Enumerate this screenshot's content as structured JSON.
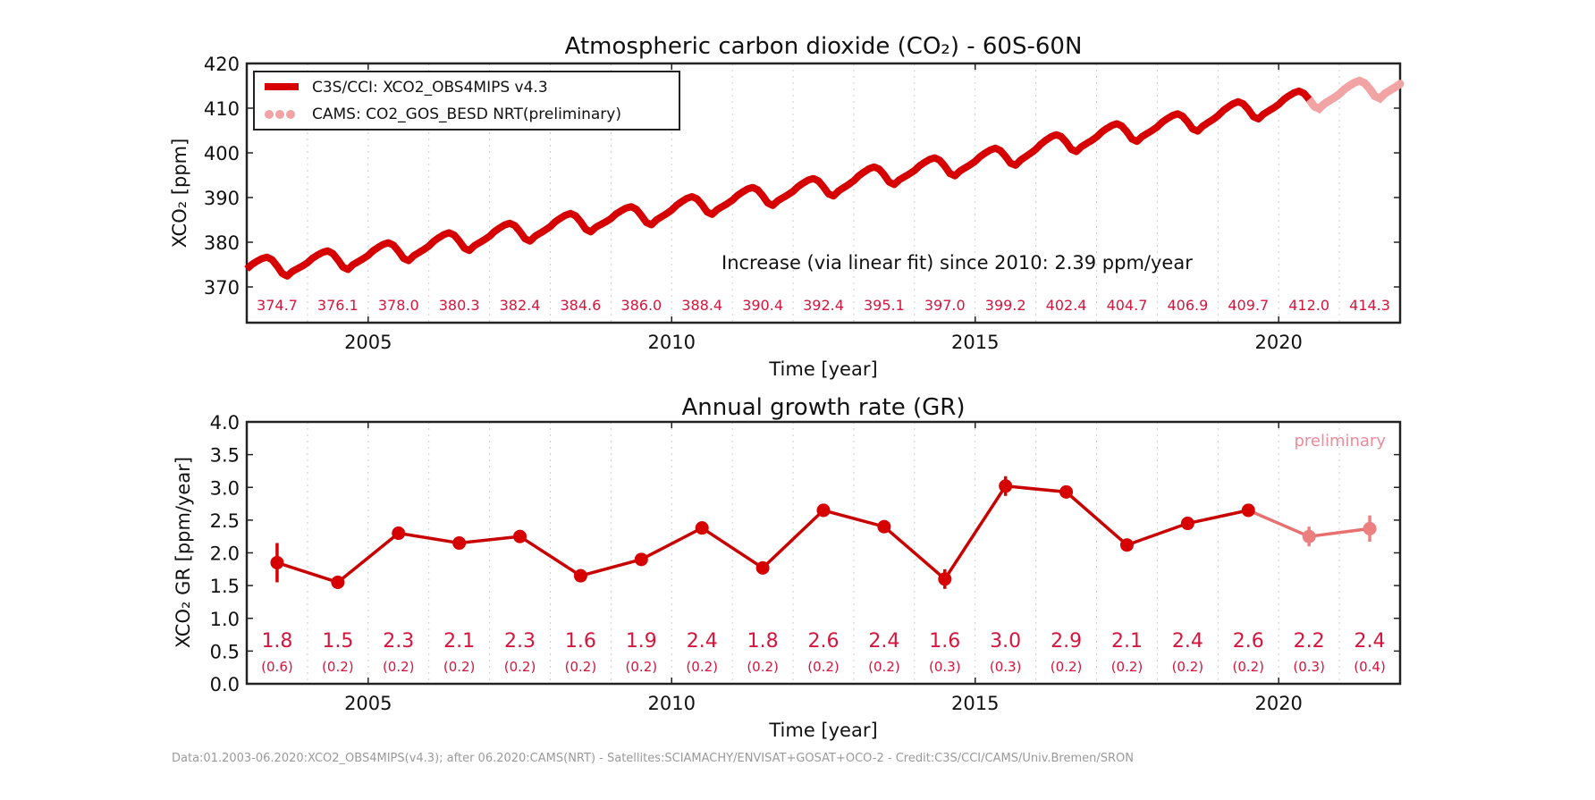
{
  "colors": {
    "main": "#d60000",
    "preliminary": "#f2a3a3",
    "labels": "#d4153c",
    "footer": "#999999"
  },
  "footer": "Data:01.2003-06.2020:XCO2_OBS4MIPS(v4.3); after 06.2020:CAMS(NRT) - Satellites:SCIAMACHY/ENVISAT+GOSAT+OCO-2 - Credit:C3S/CCI/CAMS/Univ.Bremen/SRON",
  "chart_data": [
    {
      "type": "line",
      "title": "Atmospheric carbon dioxide (CO₂) - 60S-60N",
      "xlabel": "Time [year]",
      "ylabel": "XCO₂ [ppm]",
      "xlim": [
        2003,
        2022
      ],
      "ylim": [
        362,
        420
      ],
      "xticks": [
        2005,
        2010,
        2015,
        2020
      ],
      "yticks": [
        370,
        380,
        390,
        400,
        410,
        420
      ],
      "grid": "vertical dotted, yearly",
      "legend": {
        "placement": "top-left",
        "entries": [
          "C3S/CCI: XCO2_OBS4MIPS v4.3",
          "CAMS: CO2_GOS_BESD NRT(preliminary)"
        ]
      },
      "annotation": "Increase (via linear fit) since 2010: 2.39 ppm/year",
      "annual_mean_years": [
        2003,
        2004,
        2005,
        2006,
        2007,
        2008,
        2009,
        2010,
        2011,
        2012,
        2013,
        2014,
        2015,
        2016,
        2017,
        2018,
        2019,
        2020,
        2021
      ],
      "annual_mean_labels": [
        "374.7",
        "376.1",
        "378.0",
        "380.3",
        "382.4",
        "384.6",
        "386.0",
        "388.4",
        "390.4",
        "392.4",
        "395.1",
        "397.0",
        "399.2",
        "402.4",
        "404.7",
        "406.9",
        "409.7",
        "412.0",
        "414.3"
      ],
      "seasonal_cycle_ppm_by_month": [
        0.0,
        0.9,
        1.5,
        2.0,
        2.2,
        1.5,
        0.0,
        -1.8,
        -2.5,
        -1.6,
        -1.1,
        -0.6
      ],
      "series": [
        {
          "name": "C3S/CCI: XCO2_OBS4MIPS v4.3",
          "x_range": [
            2003.0,
            2020.5
          ]
        },
        {
          "name": "CAMS: CO2_GOS_BESD NRT(preliminary)",
          "x_range": [
            2020.5,
            2022.0
          ]
        }
      ]
    },
    {
      "type": "line",
      "title": "Annual growth rate (GR)",
      "xlabel": "Time [year]",
      "ylabel": "XCO₂ GR [ppm/year]",
      "xlim": [
        2003,
        2022
      ],
      "ylim": [
        0.0,
        4.0
      ],
      "xticks": [
        2005,
        2010,
        2015,
        2020
      ],
      "yticks": [
        "0.0",
        "0.5",
        "1.0",
        "1.5",
        "2.0",
        "2.5",
        "3.0",
        "3.5",
        "4.0"
      ],
      "annotation": "preliminary",
      "x": [
        2003.5,
        2004.5,
        2005.5,
        2006.5,
        2007.5,
        2008.5,
        2009.5,
        2010.5,
        2011.5,
        2012.5,
        2013.5,
        2014.5,
        2015.5,
        2016.5,
        2017.5,
        2018.5,
        2019.5,
        2020.5,
        2021.5
      ],
      "values": [
        1.85,
        1.55,
        2.3,
        2.15,
        2.25,
        1.65,
        1.9,
        2.38,
        1.77,
        2.65,
        2.4,
        1.6,
        3.02,
        2.93,
        2.12,
        2.45,
        2.65,
        2.25,
        2.37
      ],
      "errors": [
        0.6,
        0.2,
        0.2,
        0.2,
        0.2,
        0.2,
        0.2,
        0.2,
        0.2,
        0.2,
        0.2,
        0.3,
        0.3,
        0.2,
        0.2,
        0.2,
        0.2,
        0.3,
        0.4
      ],
      "value_labels": [
        "1.8",
        "1.5",
        "2.3",
        "2.1",
        "2.3",
        "1.6",
        "1.9",
        "2.4",
        "1.8",
        "2.6",
        "2.4",
        "1.6",
        "3.0",
        "2.9",
        "2.1",
        "2.4",
        "2.6",
        "2.2",
        "2.4"
      ],
      "error_labels": [
        "(0.6)",
        "(0.2)",
        "(0.2)",
        "(0.2)",
        "(0.2)",
        "(0.2)",
        "(0.2)",
        "(0.2)",
        "(0.2)",
        "(0.2)",
        "(0.2)",
        "(0.3)",
        "(0.3)",
        "(0.2)",
        "(0.2)",
        "(0.2)",
        "(0.2)",
        "(0.3)",
        "(0.4)"
      ],
      "preliminary_from_index": 17
    }
  ]
}
